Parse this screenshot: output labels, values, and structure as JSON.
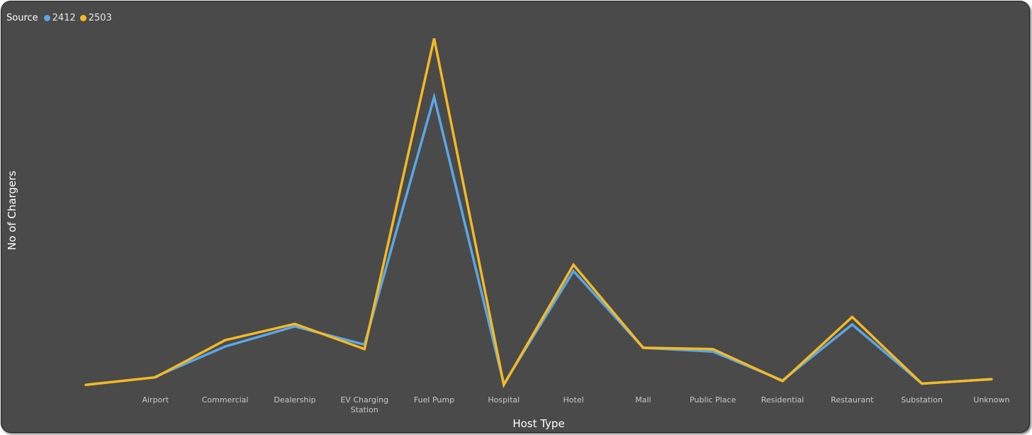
{
  "legend": {
    "title": "Source",
    "items": [
      {
        "label": "2412",
        "color": "#5BA7E6"
      },
      {
        "label": "2503",
        "color": "#F5BA22"
      }
    ]
  },
  "chart_data": {
    "type": "line",
    "title": "",
    "xlabel": "Host Type",
    "ylabel": "No of Chargers",
    "ylim": [
      0,
      550
    ],
    "grid": false,
    "legend_position": "top-left",
    "categories": [
      "",
      "Airport",
      "Commercial",
      "Dealership",
      "EV Charging Station",
      "Fuel Pump",
      "Hospital",
      "Hotel",
      "Mall",
      "Public Place",
      "Residential",
      "Restaurant",
      "Substation",
      "Unknown"
    ],
    "series": [
      {
        "name": "2412",
        "color": "#5BA7E6",
        "values": [
          null,
          15,
          63,
          95,
          66,
          460,
          3,
          183,
          61,
          55,
          9,
          98,
          4,
          11
        ]
      },
      {
        "name": "2503",
        "color": "#F5BA22",
        "values": [
          2,
          14,
          73,
          99,
          59,
          553,
          2,
          193,
          61,
          59,
          8,
          110,
          4,
          11
        ]
      }
    ]
  }
}
